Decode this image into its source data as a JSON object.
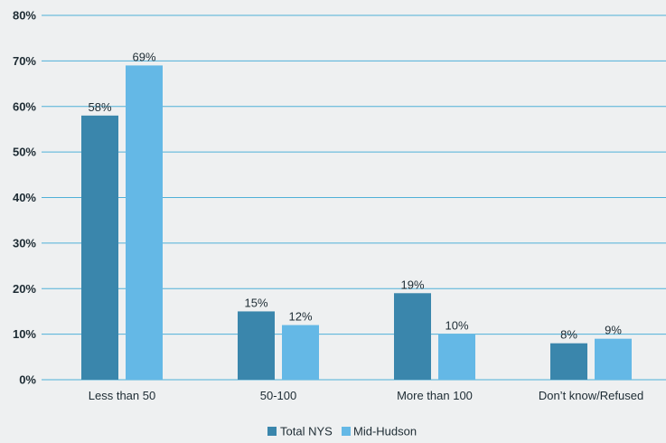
{
  "chart_data": {
    "type": "bar",
    "categories": [
      "Less than 50",
      "50-100",
      "More than 100",
      "Don’t know/Refused"
    ],
    "series": [
      {
        "name": "Total NYS",
        "values": [
          58,
          15,
          19,
          8
        ],
        "labels": [
          "58%",
          "15%",
          "19%",
          "8%"
        ],
        "color": "#3a86ac"
      },
      {
        "name": "Mid-Hudson",
        "values": [
          69,
          12,
          10,
          9
        ],
        "labels": [
          "69%",
          "12%",
          "10%",
          "9%"
        ],
        "color": "#64b8e6"
      }
    ],
    "ylim": [
      0,
      80
    ],
    "yticks": [
      0,
      10,
      20,
      30,
      40,
      50,
      60,
      70,
      80
    ],
    "ytick_labels": [
      "0%",
      "10%",
      "20%",
      "30%",
      "40%",
      "50%",
      "60%",
      "70%",
      "80%"
    ],
    "grid": true,
    "legend_position": "bottom-center",
    "title": "",
    "xlabel": "",
    "ylabel": ""
  }
}
